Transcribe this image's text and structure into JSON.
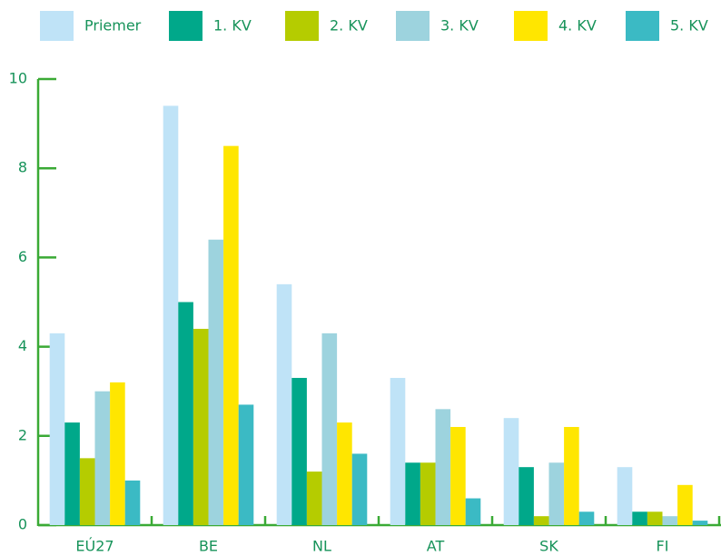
{
  "chart_data": {
    "type": "bar",
    "categories": [
      "EÚ27",
      "BE",
      "NL",
      "AT",
      "SK",
      "FI"
    ],
    "series": [
      {
        "name": "Priemer",
        "color": "#bfe3f7",
        "values": [
          4.3,
          9.4,
          5.4,
          3.3,
          2.4,
          1.3
        ]
      },
      {
        "name": "1. KV",
        "color": "#00a88a",
        "values": [
          2.3,
          5.0,
          3.3,
          1.4,
          1.3,
          0.3
        ]
      },
      {
        "name": "2. KV",
        "color": "#b5cc00",
        "values": [
          1.5,
          4.4,
          1.2,
          1.4,
          0.2,
          0.3
        ]
      },
      {
        "name": "3. KV",
        "color": "#9dd3de",
        "values": [
          3.0,
          6.4,
          4.3,
          2.6,
          1.4,
          0.2
        ]
      },
      {
        "name": "4. KV",
        "color": "#ffe600",
        "values": [
          3.2,
          8.5,
          2.3,
          2.2,
          2.2,
          0.9
        ]
      },
      {
        "name": "5. KV",
        "color": "#3bbac4",
        "values": [
          1.0,
          2.7,
          1.6,
          0.6,
          0.3,
          0.1
        ]
      }
    ],
    "ylim": [
      0,
      10
    ],
    "yticks": [
      0,
      2,
      4,
      6,
      8,
      10
    ],
    "legend": "top",
    "axis_color": "#3aaa35"
  }
}
